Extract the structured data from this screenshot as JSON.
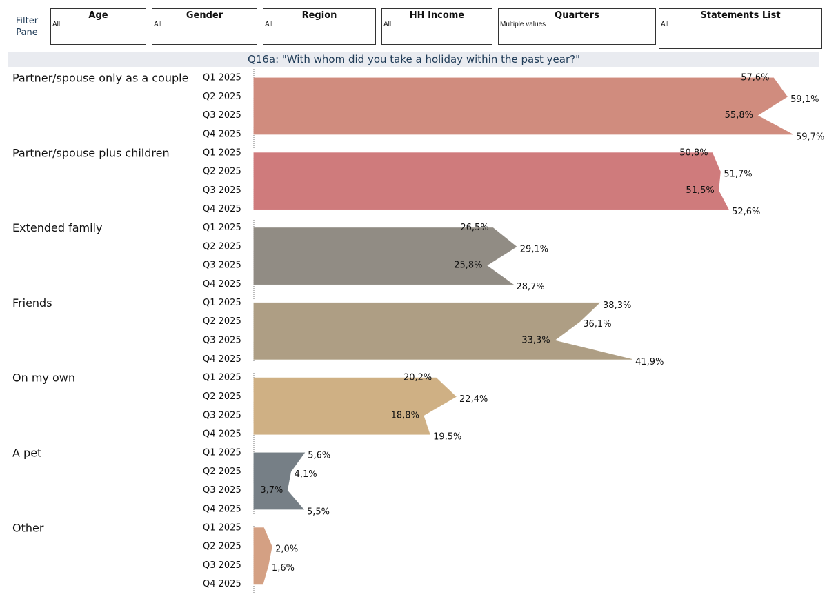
{
  "filter_pane": {
    "label": "Filter Pane"
  },
  "filters": [
    {
      "title": "Age",
      "value": "All"
    },
    {
      "title": "Gender",
      "value": "All"
    },
    {
      "title": "Region",
      "value": "All"
    },
    {
      "title": "HH Income",
      "value": "All"
    },
    {
      "title": "Quarters",
      "value": "Multiple values"
    },
    {
      "title": "Statements List",
      "value": "All"
    }
  ],
  "chart_data": {
    "type": "area",
    "title": "Q16a: \"With whom did you take a holiday within the past year?\"",
    "categories": [
      "Q1 2025",
      "Q2 2025",
      "Q3 2025",
      "Q4 2025"
    ],
    "series": [
      {
        "name": "Partner/spouse only as a couple",
        "color": "#d08c7e",
        "values": [
          57.6,
          59.1,
          55.8,
          59.7
        ],
        "value_labels": [
          "57,6%",
          "59,1%",
          "55,8%",
          "59,7%"
        ]
      },
      {
        "name": "Partner/spouse plus children",
        "color": "#cf7b7c",
        "values": [
          50.8,
          51.7,
          51.5,
          52.6
        ],
        "value_labels": [
          "50,8%",
          "51,7%",
          "51,5%",
          "52,6%"
        ]
      },
      {
        "name": "Extended family",
        "color": "#918c84",
        "values": [
          26.5,
          29.1,
          25.8,
          28.7
        ],
        "value_labels": [
          "26,5%",
          "29,1%",
          "25,8%",
          "28,7%"
        ]
      },
      {
        "name": "Friends",
        "color": "#ae9e84",
        "values": [
          38.3,
          36.1,
          33.3,
          41.9
        ],
        "value_labels": [
          "38,3%",
          "36,1%",
          "33,3%",
          "41,9%"
        ]
      },
      {
        "name": "On my own",
        "color": "#cfb084",
        "values": [
          20.2,
          22.4,
          18.8,
          19.5
        ],
        "value_labels": [
          "20,2%",
          "22,4%",
          "18,8%",
          "19,5%"
        ]
      },
      {
        "name": "A pet",
        "color": "#767f86",
        "values": [
          5.6,
          4.1,
          3.7,
          5.5
        ],
        "value_labels": [
          "5,6%",
          "4,1%",
          "3,7%",
          "5,5%"
        ]
      },
      {
        "name": "Other",
        "color": "#d4a083",
        "values": [
          1.1,
          2.0,
          1.6,
          1.0
        ],
        "value_labels": [
          null,
          "2,0%",
          "1,6%",
          null
        ]
      }
    ]
  }
}
